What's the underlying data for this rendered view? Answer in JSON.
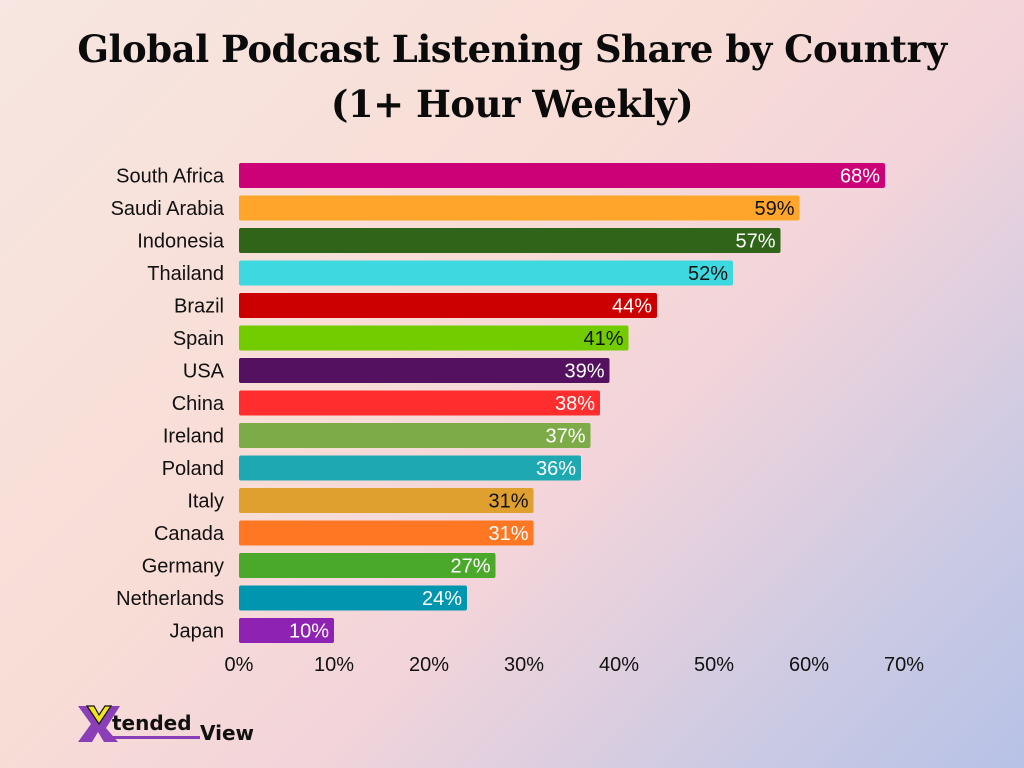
{
  "title_lines": [
    "Global Podcast Listening Share by Country",
    "(1+ Hour Weekly)"
  ],
  "chart_data": {
    "type": "bar",
    "orientation": "horizontal",
    "title": "Global Podcast Listening Share by Country (1+ Hour Weekly)",
    "categories": [
      "South Africa",
      "Saudi Arabia",
      "Indonesia",
      "Thailand",
      "Brazil",
      "Spain",
      "USA",
      "China",
      "Ireland",
      "Poland",
      "Italy",
      "Canada",
      "Germany",
      "Netherlands",
      "Japan"
    ],
    "values": [
      68,
      59,
      57,
      52,
      44,
      41,
      39,
      38,
      37,
      36,
      31,
      31,
      27,
      24,
      10
    ],
    "data_labels": [
      "68%",
      "59%",
      "57%",
      "52%",
      "44%",
      "41%",
      "39%",
      "38%",
      "37%",
      "36%",
      "31%",
      "31%",
      "27%",
      "24%",
      "10%"
    ],
    "colors": [
      "#cc0077",
      "#ffa62a",
      "#2f6419",
      "#3dd8e0",
      "#cc0000",
      "#72cc00",
      "#541160",
      "#ff2d2d",
      "#7dab48",
      "#1ea9b2",
      "#e0a030",
      "#ff7723",
      "#4aa82a",
      "#0096b0",
      "#8e22b2"
    ],
    "label_colors": [
      "#ffffff",
      "#111111",
      "#ffffff",
      "#111111",
      "#ffffff",
      "#111111",
      "#ffffff",
      "#ffffff",
      "#ffffff",
      "#ffffff",
      "#111111",
      "#ffffff",
      "#ffffff",
      "#ffffff",
      "#ffffff"
    ],
    "xlim": [
      0,
      70
    ],
    "xticks": [
      0,
      10,
      20,
      30,
      40,
      50,
      60,
      70
    ],
    "xtick_labels": [
      "0%",
      "10%",
      "20%",
      "30%",
      "40%",
      "50%",
      "60%",
      "70%"
    ],
    "xlabel": "",
    "ylabel": "",
    "grid": false,
    "legend": "none"
  },
  "logo": {
    "text_part1": "tended",
    "text_part2": "View",
    "mark": "X",
    "colors": {
      "purple": "#8a3fb8",
      "yellow": "#f2e51c",
      "text": "#111111"
    }
  }
}
